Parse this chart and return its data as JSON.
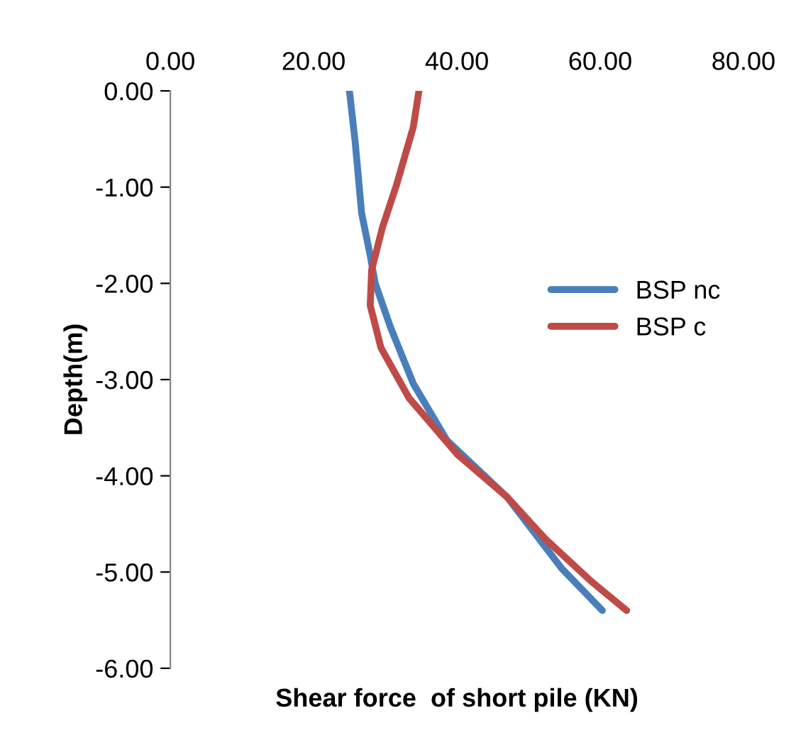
{
  "chart_data": {
    "type": "line",
    "xlabel": "Shear force  of short pile (KN)",
    "ylabel": "Depth(m)",
    "xlim": [
      0,
      80
    ],
    "xticks": [
      {
        "value": 0,
        "label": "0.00"
      },
      {
        "value": 20,
        "label": "20.00"
      },
      {
        "value": 40,
        "label": "40.00"
      },
      {
        "value": 60,
        "label": "60.00"
      },
      {
        "value": 80,
        "label": "80.00"
      }
    ],
    "ylim": [
      -6,
      0
    ],
    "yticks": [
      {
        "value": 0,
        "label": "0.00"
      },
      {
        "value": -1,
        "label": "-1.00"
      },
      {
        "value": -2,
        "label": "-2.00"
      },
      {
        "value": -3,
        "label": "-3.00"
      },
      {
        "value": -4,
        "label": "-4.00"
      },
      {
        "value": -5,
        "label": "-5.00"
      },
      {
        "value": -6,
        "label": "-6.00"
      }
    ],
    "grid": false,
    "legend": "right",
    "marker": "none",
    "line_style": "solid",
    "series": [
      {
        "name": "BSP nc",
        "color": "#4a7ebb",
        "x": [
          25.0,
          25.8,
          26.7,
          27.9,
          28.6,
          30.7,
          33.9,
          38.6,
          47.0,
          54.6,
          60.3
        ],
        "values": [
          0,
          -0.53,
          -1.27,
          -1.71,
          -2.0,
          -2.45,
          -3.04,
          -3.63,
          -4.22,
          -4.96,
          -5.4
        ]
      },
      {
        "name": "BSP c",
        "color": "#be4b48",
        "x": [
          34.7,
          33.9,
          31.6,
          29.6,
          28.1,
          27.9,
          29.4,
          33.3,
          40.1,
          47.0,
          52.4,
          58.8,
          63.7
        ],
        "values": [
          0,
          -0.38,
          -0.97,
          -1.42,
          -1.86,
          -2.23,
          -2.67,
          -3.19,
          -3.78,
          -4.22,
          -4.66,
          -5.1,
          -5.4
        ]
      }
    ]
  }
}
